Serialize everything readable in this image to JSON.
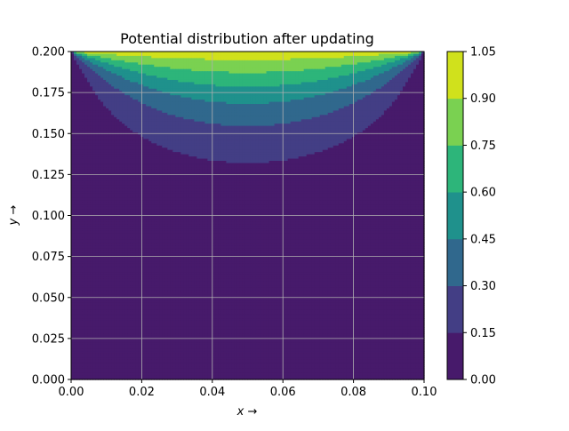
{
  "chart_data": {
    "type": "heatmap",
    "title": "Potential distribution after updating",
    "xlabel": "x →",
    "ylabel": "y →",
    "xlim": [
      0.0,
      0.1
    ],
    "ylim": [
      0.0,
      0.2
    ],
    "x_ticks": [
      "0.00",
      "0.02",
      "0.04",
      "0.06",
      "0.08",
      "0.10"
    ],
    "y_ticks": [
      "0.000",
      "0.025",
      "0.050",
      "0.075",
      "0.100",
      "0.125",
      "0.150",
      "0.175",
      "0.200"
    ],
    "grid": true,
    "boundary_potential_top": 1.0,
    "boundary_potential_other": 0.0,
    "contour_levels": [
      0.0,
      0.15,
      0.3,
      0.45,
      0.6,
      0.75,
      0.9,
      1.05
    ],
    "colorbar_ticks": [
      "0.00",
      "0.15",
      "0.30",
      "0.45",
      "0.60",
      "0.75",
      "0.90",
      "1.05"
    ],
    "level_colors": [
      "#471a6b",
      "#433e85",
      "#30688d",
      "#1f918c",
      "#2db57a",
      "#7ad151",
      "#d0e11c"
    ],
    "colormap": "viridis"
  }
}
